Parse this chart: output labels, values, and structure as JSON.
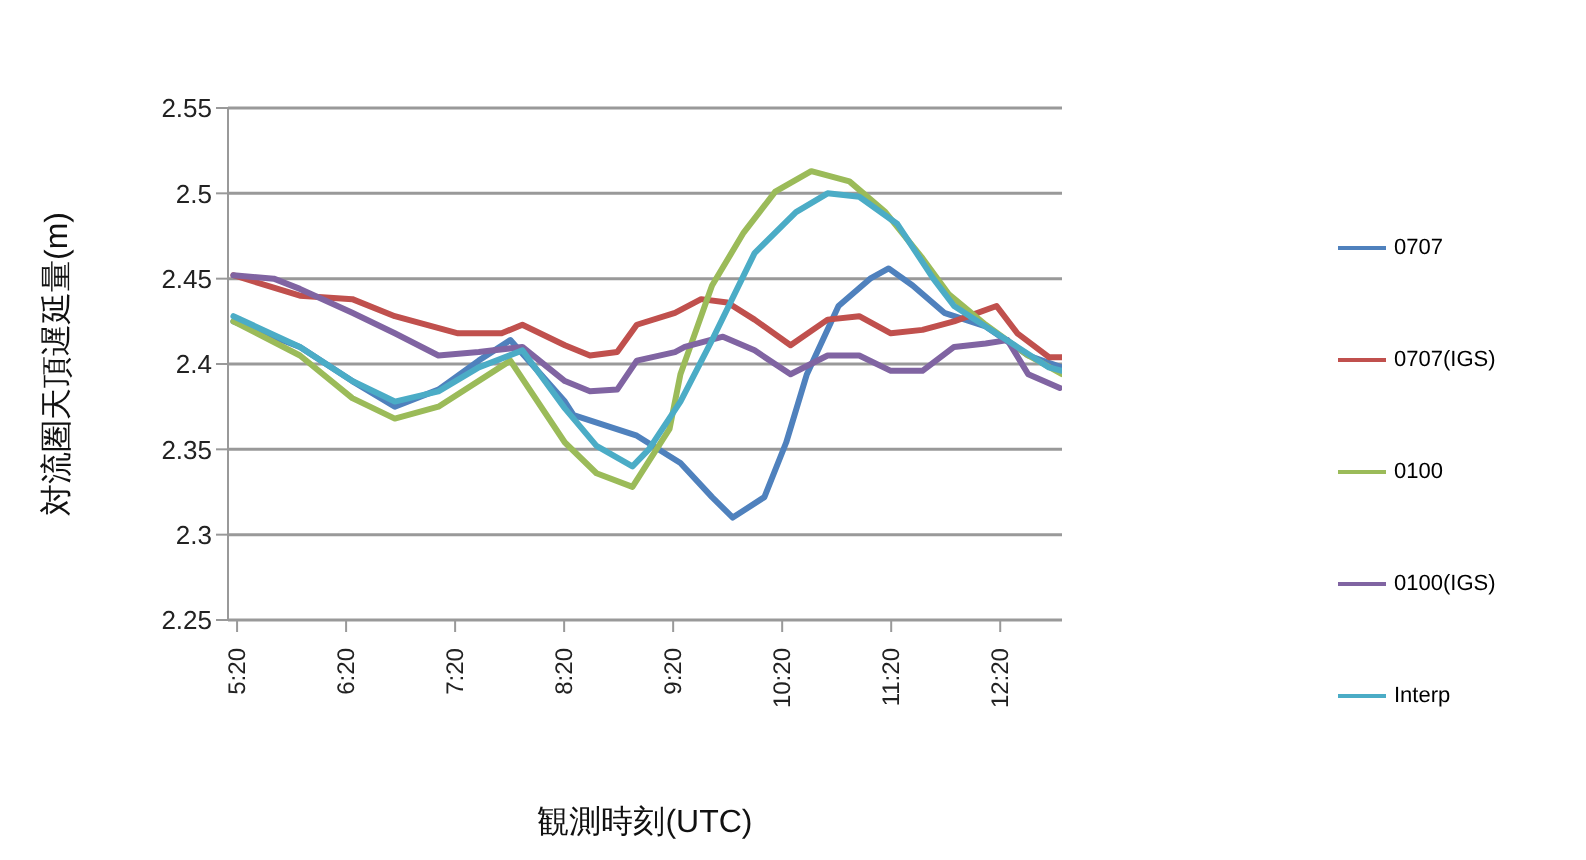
{
  "chart_data": {
    "type": "line",
    "xlabel": "観測時刻(UTC)",
    "ylabel": "対流圏天頂遅延量(m)",
    "xlim": [
      5.25,
      12.9
    ],
    "xticks": [
      {
        "value": 5.3333,
        "label": "5:20"
      },
      {
        "value": 6.3333,
        "label": "6:20"
      },
      {
        "value": 7.3333,
        "label": "7:20"
      },
      {
        "value": 8.3333,
        "label": "8:20"
      },
      {
        "value": 9.3333,
        "label": "9:20"
      },
      {
        "value": 10.3333,
        "label": "10:20"
      },
      {
        "value": 11.3333,
        "label": "11:20"
      },
      {
        "value": 12.3333,
        "label": "12:20"
      }
    ],
    "ylim": [
      2.25,
      2.55
    ],
    "yticks": [
      2.25,
      2.3,
      2.35,
      2.4,
      2.45,
      2.5,
      2.55
    ],
    "grid": "y",
    "legend": "right",
    "line_style": "solid",
    "series": [
      {
        "name": "0707",
        "color": "#4f81bd",
        "x": [
          5.3,
          5.91,
          6.39,
          6.78,
          7.18,
          7.55,
          7.84,
          8.34,
          8.42,
          9.0,
          9.4,
          9.69,
          9.88,
          10.17,
          10.37,
          10.56,
          10.85,
          11.14,
          11.31,
          11.53,
          11.82,
          12.2,
          12.59,
          12.9
        ],
        "values": [
          2.425,
          2.41,
          2.39,
          2.375,
          2.385,
          2.402,
          2.414,
          2.378,
          2.37,
          2.358,
          2.342,
          2.322,
          2.31,
          2.322,
          2.354,
          2.394,
          2.434,
          2.45,
          2.456,
          2.446,
          2.43,
          2.422,
          2.405,
          2.398
        ]
      },
      {
        "name": "0707(IGS)",
        "color": "#c0504d",
        "x": [
          5.3,
          5.91,
          6.39,
          6.78,
          7.36,
          7.76,
          7.95,
          8.34,
          8.57,
          8.82,
          9.0,
          9.35,
          9.59,
          9.83,
          10.08,
          10.41,
          10.75,
          11.04,
          11.33,
          11.62,
          11.91,
          12.3,
          12.49,
          12.78,
          12.9
        ],
        "values": [
          2.452,
          2.44,
          2.438,
          2.428,
          2.418,
          2.418,
          2.423,
          2.411,
          2.405,
          2.407,
          2.423,
          2.43,
          2.438,
          2.436,
          2.426,
          2.411,
          2.426,
          2.428,
          2.418,
          2.42,
          2.425,
          2.434,
          2.418,
          2.404,
          2.404
        ]
      },
      {
        "name": "0100",
        "color": "#9bbb59",
        "x": [
          5.3,
          5.91,
          6.39,
          6.78,
          7.18,
          7.84,
          8.34,
          8.63,
          8.96,
          9.3,
          9.4,
          9.69,
          9.98,
          10.27,
          10.6,
          10.95,
          11.28,
          11.62,
          11.86,
          12.2,
          12.59,
          12.9
        ],
        "values": [
          2.425,
          2.405,
          2.38,
          2.368,
          2.375,
          2.402,
          2.354,
          2.336,
          2.328,
          2.362,
          2.394,
          2.446,
          2.477,
          2.501,
          2.513,
          2.507,
          2.489,
          2.462,
          2.441,
          2.423,
          2.405,
          2.394
        ]
      },
      {
        "name": "0100(IGS)",
        "color": "#8064a2",
        "x": [
          5.3,
          5.67,
          5.91,
          6.39,
          6.78,
          7.18,
          7.55,
          7.95,
          8.34,
          8.57,
          8.82,
          9.0,
          9.35,
          9.44,
          9.79,
          10.08,
          10.41,
          10.75,
          11.04,
          11.33,
          11.62,
          11.91,
          12.2,
          12.4,
          12.59,
          12.88
        ],
        "values": [
          2.452,
          2.45,
          2.444,
          2.43,
          2.418,
          2.405,
          2.407,
          2.41,
          2.39,
          2.384,
          2.385,
          2.402,
          2.407,
          2.41,
          2.416,
          2.408,
          2.394,
          2.405,
          2.405,
          2.396,
          2.396,
          2.41,
          2.412,
          2.414,
          2.394,
          2.386
        ]
      },
      {
        "name": "Interp",
        "color": "#4bacc6",
        "x": [
          5.3,
          5.91,
          6.39,
          6.78,
          7.18,
          7.55,
          7.95,
          8.34,
          8.63,
          8.96,
          9.11,
          9.4,
          9.69,
          10.08,
          10.46,
          10.75,
          11.04,
          11.39,
          11.72,
          11.91,
          12.2,
          12.49,
          12.78,
          12.9
        ],
        "values": [
          2.428,
          2.41,
          2.39,
          2.378,
          2.384,
          2.398,
          2.408,
          2.374,
          2.352,
          2.34,
          2.35,
          2.378,
          2.414,
          2.465,
          2.489,
          2.5,
          2.498,
          2.482,
          2.45,
          2.434,
          2.422,
          2.41,
          2.398,
          2.396
        ]
      }
    ]
  }
}
